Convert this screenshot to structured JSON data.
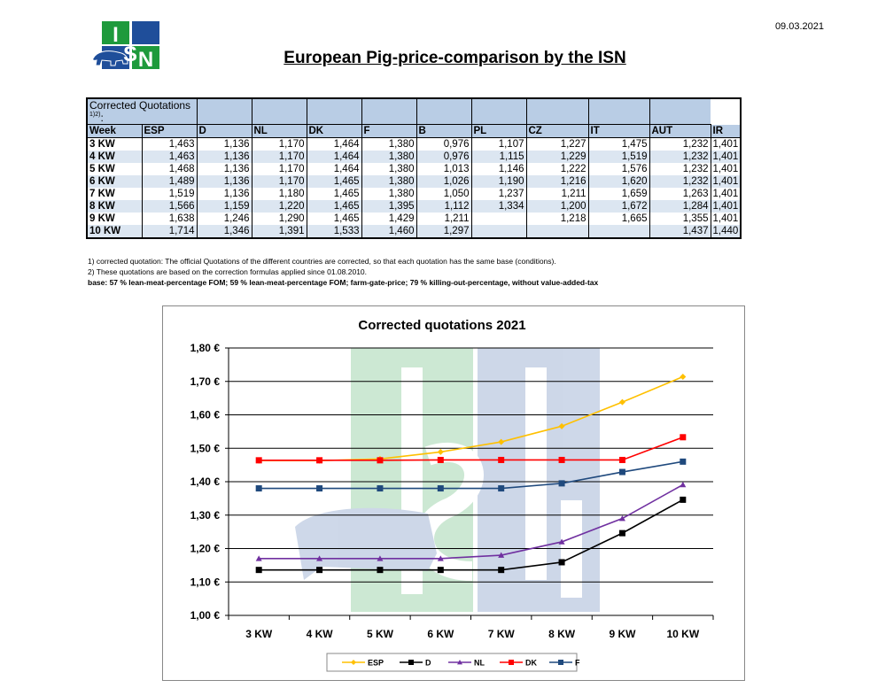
{
  "header": {
    "date": "09.03.2021",
    "title": "European Pig-price-comparison by the ISN",
    "logo_letters": [
      "I",
      "S",
      "N"
    ]
  },
  "table": {
    "caption": "Corrected Quotations",
    "caption_sup": "1)2)",
    "caption_suffix": ":",
    "columns": [
      "Week",
      "ESP",
      "D",
      "NL",
      "DK",
      "F",
      "B",
      "PL",
      "CZ",
      "IT",
      "AUT",
      "IR"
    ],
    "rows": [
      [
        "3 KW",
        "1,463",
        "1,136",
        "1,170",
        "1,464",
        "1,380",
        "0,976",
        "1,107",
        "1,227",
        "1,475",
        "1,232",
        "1,401"
      ],
      [
        "4 KW",
        "1,463",
        "1,136",
        "1,170",
        "1,464",
        "1,380",
        "0,976",
        "1,115",
        "1,229",
        "1,519",
        "1,232",
        "1,401"
      ],
      [
        "5 KW",
        "1,468",
        "1,136",
        "1,170",
        "1,464",
        "1,380",
        "1,013",
        "1,146",
        "1,222",
        "1,576",
        "1,232",
        "1,401"
      ],
      [
        "6 KW",
        "1,489",
        "1,136",
        "1,170",
        "1,465",
        "1,380",
        "1,026",
        "1,190",
        "1,216",
        "1,620",
        "1,232",
        "1,401"
      ],
      [
        "7 KW",
        "1,519",
        "1,136",
        "1,180",
        "1,465",
        "1,380",
        "1,050",
        "1,237",
        "1,211",
        "1,659",
        "1,263",
        "1,401"
      ],
      [
        "8 KW",
        "1,566",
        "1,159",
        "1,220",
        "1,465",
        "1,395",
        "1,112",
        "1,334",
        "1,200",
        "1,672",
        "1,284",
        "1,401"
      ],
      [
        "9 KW",
        "1,638",
        "1,246",
        "1,290",
        "1,465",
        "1,429",
        "1,211",
        "",
        "1,218",
        "1,665",
        "1,355",
        "1,401"
      ],
      [
        "10 KW",
        "1,714",
        "1,346",
        "1,391",
        "1,533",
        "1,460",
        "1,297",
        "",
        "",
        "",
        "1,437",
        "1,440"
      ]
    ]
  },
  "notes": [
    "1) corrected quotation: The official Quotations of the different countries are corrected, so that each quotation has the same base (conditions).",
    "2) These quotations are based on the correction formulas applied since 01.08.2010.",
    "base: 57 % lean-meat-percentage FOM; 59 % lean-meat-percentage FOM; farm-gate-price; 79 % killing-out-percentage, without value-added-tax"
  ],
  "colors": {
    "ESP": "#ffc000",
    "D": "#000000",
    "NL": "#7030a0",
    "DK": "#ff0000",
    "F": "#1f497d",
    "table_header": "#b9cde5",
    "table_band": "#dce6f1",
    "logo_green": "#1e9a3c",
    "logo_blue": "#1f4e9a"
  },
  "chart_data": {
    "type": "line",
    "title": "Corrected quotations 2021",
    "xlabel": "",
    "ylabel": "",
    "categories": [
      "3 KW",
      "4 KW",
      "5 KW",
      "6 KW",
      "7 KW",
      "8 KW",
      "9 KW",
      "10 KW"
    ],
    "ylim": [
      1.0,
      1.8
    ],
    "yticks": [
      1.0,
      1.1,
      1.2,
      1.3,
      1.4,
      1.5,
      1.6,
      1.7,
      1.8
    ],
    "ytick_labels": [
      "1,00 €",
      "1,10 €",
      "1,20 €",
      "1,30 €",
      "1,40 €",
      "1,50 €",
      "1,60 €",
      "1,70 €",
      "1,80 €"
    ],
    "grid": true,
    "legend": "bottom",
    "series": [
      {
        "name": "ESP",
        "marker": "diamond",
        "values": [
          1.463,
          1.463,
          1.468,
          1.489,
          1.519,
          1.566,
          1.638,
          1.714
        ]
      },
      {
        "name": "D",
        "marker": "square",
        "values": [
          1.136,
          1.136,
          1.136,
          1.136,
          1.136,
          1.159,
          1.246,
          1.346
        ]
      },
      {
        "name": "NL",
        "marker": "triangle",
        "values": [
          1.17,
          1.17,
          1.17,
          1.17,
          1.18,
          1.22,
          1.29,
          1.391
        ]
      },
      {
        "name": "DK",
        "marker": "square",
        "values": [
          1.464,
          1.464,
          1.464,
          1.465,
          1.465,
          1.465,
          1.465,
          1.533
        ]
      },
      {
        "name": "F",
        "marker": "square",
        "values": [
          1.38,
          1.38,
          1.38,
          1.38,
          1.38,
          1.395,
          1.429,
          1.46
        ]
      }
    ]
  }
}
